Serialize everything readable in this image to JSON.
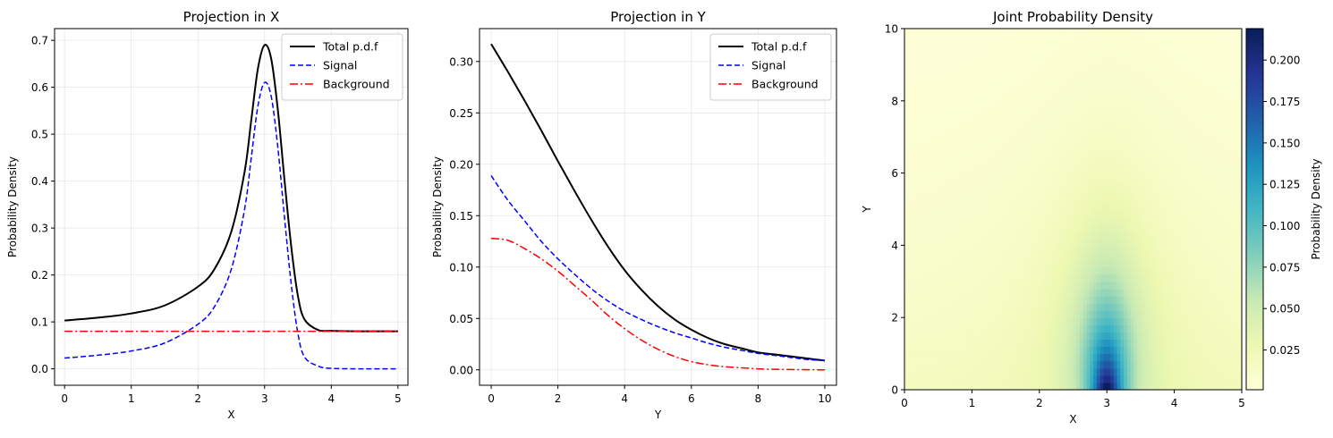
{
  "chart_data": [
    {
      "type": "line",
      "title": "Projection in X",
      "xlabel": "X",
      "ylabel": "Probability Density",
      "xlim": [
        -0.15,
        5.15
      ],
      "ylim": [
        -0.035,
        0.725
      ],
      "xticks": [
        0,
        1,
        2,
        3,
        4,
        5
      ],
      "yticks": [
        0.0,
        0.1,
        0.2,
        0.3,
        0.4,
        0.5,
        0.6,
        0.7
      ],
      "xtick_labels": [
        "0",
        "1",
        "2",
        "3",
        "4",
        "5"
      ],
      "ytick_labels": [
        "0.0",
        "0.1",
        "0.2",
        "0.3",
        "0.4",
        "0.5",
        "0.6",
        "0.7"
      ],
      "grid": true,
      "legend_position": "upper right",
      "series": [
        {
          "name": "Total p.d.f",
          "color": "#000000",
          "style": "solid",
          "x": [
            0,
            0.5,
            1.0,
            1.5,
            2.0,
            2.25,
            2.5,
            2.7,
            2.8,
            2.9,
            3.0,
            3.1,
            3.2,
            3.3,
            3.4,
            3.5,
            3.6,
            3.8,
            4.0,
            4.5,
            5.0
          ],
          "y": [
            0.103,
            0.109,
            0.118,
            0.135,
            0.175,
            0.213,
            0.292,
            0.42,
            0.53,
            0.64,
            0.69,
            0.66,
            0.55,
            0.4,
            0.26,
            0.155,
            0.105,
            0.083,
            0.081,
            0.08,
            0.08
          ]
        },
        {
          "name": "Signal",
          "color": "#0000ff",
          "style": "dashed",
          "x": [
            0,
            0.5,
            1.0,
            1.5,
            2.0,
            2.25,
            2.5,
            2.7,
            2.8,
            2.9,
            3.0,
            3.1,
            3.2,
            3.3,
            3.4,
            3.5,
            3.6,
            3.8,
            4.0,
            4.5,
            5.0
          ],
          "y": [
            0.023,
            0.029,
            0.038,
            0.055,
            0.095,
            0.133,
            0.212,
            0.34,
            0.45,
            0.56,
            0.61,
            0.58,
            0.47,
            0.32,
            0.18,
            0.075,
            0.025,
            0.006,
            0.001,
            0.0,
            0.0
          ]
        },
        {
          "name": "Background",
          "color": "#ff0000",
          "style": "dashdot",
          "x": [
            0,
            5.0
          ],
          "y": [
            0.08,
            0.08
          ]
        }
      ]
    },
    {
      "type": "line",
      "title": "Projection in Y",
      "xlabel": "Y",
      "ylabel": "Probability Density",
      "xlim": [
        -0.35,
        10.35
      ],
      "ylim": [
        -0.015,
        0.332
      ],
      "xticks": [
        0,
        2,
        4,
        6,
        8,
        10
      ],
      "yticks": [
        0.0,
        0.05,
        0.1,
        0.15,
        0.2,
        0.25,
        0.3
      ],
      "xtick_labels": [
        "0",
        "2",
        "4",
        "6",
        "8",
        "10"
      ],
      "ytick_labels": [
        "0.00",
        "0.05",
        "0.10",
        "0.15",
        "0.20",
        "0.25",
        "0.30"
      ],
      "grid": true,
      "legend_position": "upper right",
      "series": [
        {
          "name": "Total p.d.f",
          "color": "#000000",
          "style": "solid",
          "x": [
            0,
            0.5,
            1,
            1.5,
            2,
            2.5,
            3,
            3.5,
            4,
            4.5,
            5,
            5.5,
            6,
            6.5,
            7,
            7.5,
            8,
            8.5,
            9,
            9.5,
            10
          ],
          "y": [
            0.317,
            0.29,
            0.262,
            0.233,
            0.203,
            0.174,
            0.146,
            0.12,
            0.097,
            0.078,
            0.062,
            0.049,
            0.039,
            0.031,
            0.025,
            0.021,
            0.017,
            0.015,
            0.013,
            0.011,
            0.009
          ]
        },
        {
          "name": "Signal",
          "color": "#0000ff",
          "style": "dashed",
          "x": [
            0,
            0.5,
            1,
            1.5,
            2,
            2.5,
            3,
            3.5,
            4,
            4.5,
            5,
            5.5,
            6,
            6.5,
            7,
            7.5,
            8,
            8.5,
            9,
            9.5,
            10
          ],
          "y": [
            0.189,
            0.165,
            0.145,
            0.125,
            0.108,
            0.093,
            0.079,
            0.067,
            0.057,
            0.049,
            0.042,
            0.036,
            0.031,
            0.026,
            0.022,
            0.019,
            0.016,
            0.014,
            0.012,
            0.01,
            0.009
          ]
        },
        {
          "name": "Background",
          "color": "#ff0000",
          "style": "dashdot",
          "x": [
            0,
            0.5,
            1,
            1.5,
            2,
            2.5,
            3,
            3.5,
            4,
            4.5,
            5,
            5.5,
            6,
            6.5,
            7,
            7.5,
            8,
            8.5,
            9,
            9.5,
            10
          ],
          "y": [
            0.128,
            0.126,
            0.118,
            0.108,
            0.096,
            0.082,
            0.068,
            0.053,
            0.04,
            0.029,
            0.02,
            0.013,
            0.008,
            0.005,
            0.003,
            0.002,
            0.001,
            0.0005,
            0.0003,
            0.0001,
            0.0
          ]
        }
      ]
    },
    {
      "type": "heatmap",
      "title": "Joint Probability Density",
      "xlabel": "X",
      "ylabel": "Y",
      "xlim": [
        0,
        5
      ],
      "ylim": [
        0,
        10
      ],
      "xticks": [
        0,
        1,
        2,
        3,
        4,
        5
      ],
      "yticks": [
        0,
        2,
        4,
        6,
        8,
        10
      ],
      "xtick_labels": [
        "0",
        "1",
        "2",
        "3",
        "4",
        "5"
      ],
      "ytick_labels": [
        "0",
        "2",
        "4",
        "6",
        "8",
        "10"
      ],
      "colormap": "YlGnBu",
      "colormap_stops": [
        "#ffffd9",
        "#edf8b1",
        "#c7e9b4",
        "#7fcdbb",
        "#41b6c4",
        "#1d91c0",
        "#225ea8",
        "#253494",
        "#081d58"
      ],
      "vmin": 0.001,
      "vmax": 0.219,
      "colorbar": {
        "label": "Probability Density",
        "ticks": [
          0.025,
          0.05,
          0.075,
          0.1,
          0.125,
          0.15,
          0.175,
          0.2
        ],
        "tick_labels": [
          "0.025",
          "0.050",
          "0.075",
          "0.100",
          "0.125",
          "0.150",
          "0.175",
          "0.200"
        ]
      }
    }
  ]
}
